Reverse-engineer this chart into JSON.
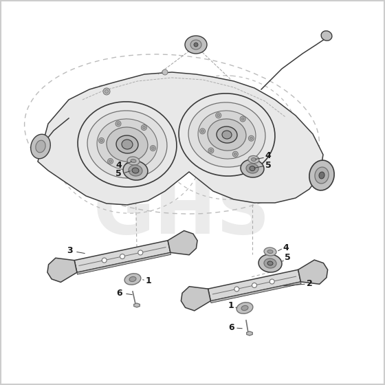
{
  "figsize": [
    5.6,
    5.6
  ],
  "dpi": 100,
  "background_color": "#ffffff",
  "line_color": "#3a3a3a",
  "mid_gray": "#707070",
  "light_gray": "#c0c0c0",
  "very_light_gray": "#e8e8e8",
  "dashed_color": "#aaaaaa",
  "watermark_color": "#d8d8d8",
  "watermark_text": "GHS",
  "border_color": "#cccccc",
  "label_fontsize": 9,
  "label_color": "#1a1a1a"
}
